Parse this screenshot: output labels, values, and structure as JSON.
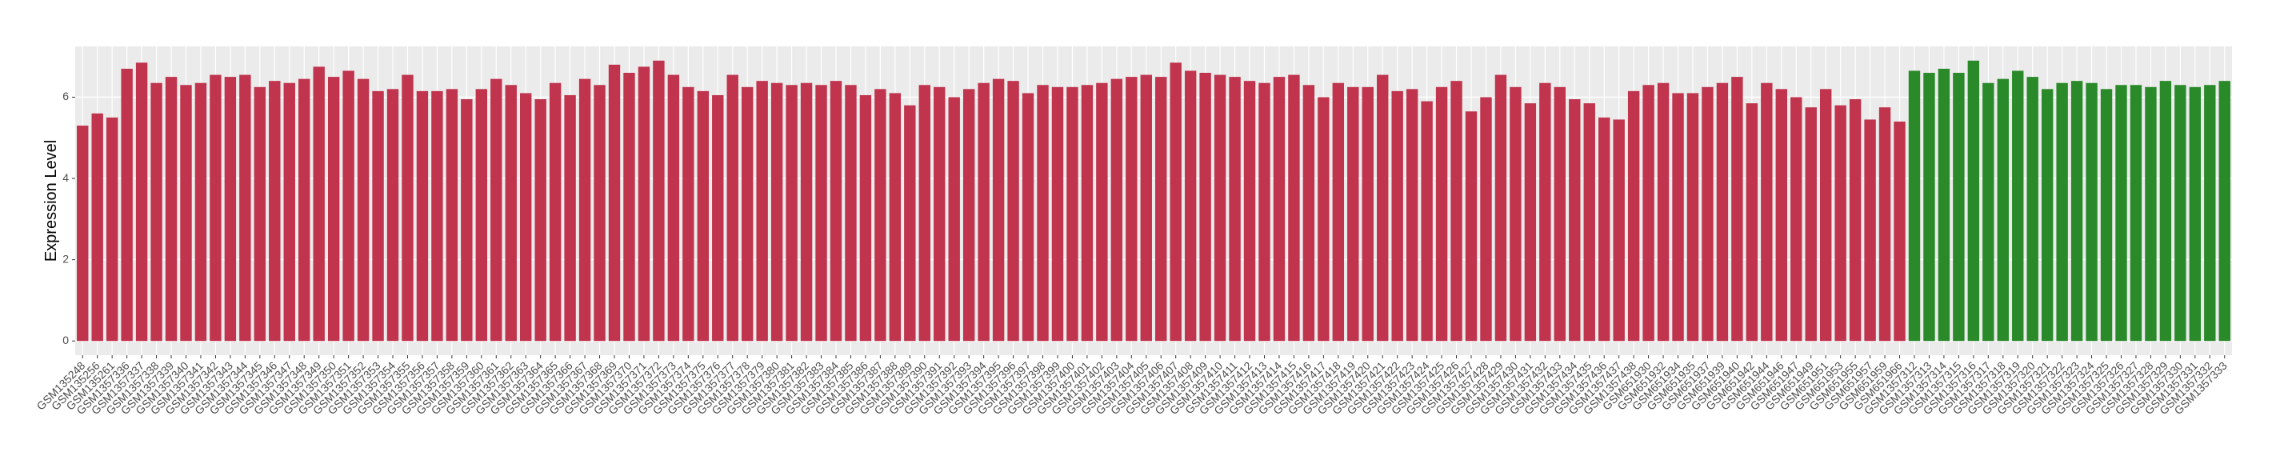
{
  "chart_data": {
    "type": "bar",
    "y_label": "Expression Level",
    "ylim": [
      -0.35,
      7.25
    ],
    "yticks": [
      0,
      2,
      4,
      6
    ],
    "grid": true,
    "groups": [
      {
        "color": "#c0344d",
        "categories": [
          "GSM135248",
          "GSM135256",
          "GSM135261",
          "GSM1357336",
          "GSM1357337",
          "GSM1357338",
          "GSM1357339",
          "GSM1357340",
          "GSM1357341",
          "GSM1357342",
          "GSM1357343",
          "GSM1357344",
          "GSM1357345",
          "GSM1357346",
          "GSM1357347",
          "GSM1357348",
          "GSM1357349",
          "GSM1357350",
          "GSM1357351",
          "GSM1357352",
          "GSM1357353",
          "GSM1357354",
          "GSM1357355",
          "GSM1357356",
          "GSM1357357",
          "GSM1357358",
          "GSM1357359",
          "GSM1357360",
          "GSM1357361",
          "GSM1357362",
          "GSM1357363",
          "GSM1357364",
          "GSM1357365",
          "GSM1357366",
          "GSM1357367",
          "GSM1357368",
          "GSM1357369",
          "GSM1357370",
          "GSM1357371",
          "GSM1357372",
          "GSM1357373",
          "GSM1357374",
          "GSM1357375",
          "GSM1357376",
          "GSM1357377",
          "GSM1357378",
          "GSM1357379",
          "GSM1357380",
          "GSM1357381",
          "GSM1357382",
          "GSM1357383",
          "GSM1357384",
          "GSM1357385",
          "GSM1357386",
          "GSM1357387",
          "GSM1357388",
          "GSM1357389",
          "GSM1357390",
          "GSM1357391",
          "GSM1357392",
          "GSM1357393",
          "GSM1357394",
          "GSM1357395",
          "GSM1357396",
          "GSM1357397",
          "GSM1357398",
          "GSM1357399",
          "GSM1357400",
          "GSM1357401",
          "GSM1357402",
          "GSM1357403",
          "GSM1357404",
          "GSM1357405",
          "GSM1357406",
          "GSM1357407",
          "GSM1357408",
          "GSM1357409",
          "GSM1357410",
          "GSM1357411",
          "GSM1357412",
          "GSM1357413",
          "GSM1357414",
          "GSM1357415",
          "GSM1357416",
          "GSM1357417",
          "GSM1357418",
          "GSM1357419",
          "GSM1357420",
          "GSM1357421",
          "GSM1357422",
          "GSM1357423",
          "GSM1357424",
          "GSM1357425",
          "GSM1357426",
          "GSM1357427",
          "GSM1357428",
          "GSM1357429",
          "GSM1357430",
          "GSM1357431",
          "GSM1357432",
          "GSM1357433",
          "GSM1357434",
          "GSM1357435",
          "GSM1357436",
          "GSM1357437",
          "GSM1357438",
          "GSM651930",
          "GSM651932",
          "GSM651934",
          "GSM651935",
          "GSM651937",
          "GSM651939",
          "GSM651940",
          "GSM651942",
          "GSM651944",
          "GSM651946",
          "GSM651947",
          "GSM651949",
          "GSM651951",
          "GSM651953",
          "GSM651955",
          "GSM651957",
          "GSM651959",
          "GSM651966"
        ],
        "values": [
          5.3,
          5.6,
          5.5,
          6.7,
          6.85,
          6.35,
          6.5,
          6.3,
          6.35,
          6.55,
          6.5,
          6.55,
          6.25,
          6.4,
          6.35,
          6.45,
          6.75,
          6.5,
          6.65,
          6.45,
          6.15,
          6.2,
          6.55,
          6.15,
          6.15,
          6.2,
          5.95,
          6.2,
          6.45,
          6.3,
          6.1,
          5.95,
          6.35,
          6.05,
          6.45,
          6.3,
          6.8,
          6.6,
          6.75,
          6.9,
          6.55,
          6.25,
          6.15,
          6.05,
          6.55,
          6.25,
          6.4,
          6.35,
          6.3,
          6.35,
          6.3,
          6.4,
          6.3,
          6.05,
          6.2,
          6.1,
          5.8,
          6.3,
          6.25,
          6.0,
          6.2,
          6.35,
          6.45,
          6.4,
          6.1,
          6.3,
          6.25,
          6.25,
          6.3,
          6.35,
          6.45,
          6.5,
          6.55,
          6.5,
          6.85,
          6.65,
          6.6,
          6.55,
          6.5,
          6.4,
          6.35,
          6.5,
          6.55,
          6.3,
          6.0,
          6.35,
          6.25,
          6.25,
          6.55,
          6.15,
          6.2,
          5.9,
          6.25,
          6.4,
          5.65,
          6.0,
          6.55,
          6.25,
          5.85,
          6.35,
          6.25,
          5.95,
          5.85,
          5.5,
          5.45,
          6.15,
          6.3,
          6.35,
          6.1,
          6.1,
          6.25,
          6.35,
          6.5,
          5.85,
          6.35,
          6.2,
          6.0,
          5.75,
          6.2,
          5.8,
          5.95,
          5.45,
          5.75,
          5.4
        ]
      },
      {
        "color": "#2a8a2a",
        "categories": [
          "GSM1357312",
          "GSM1357313",
          "GSM1357314",
          "GSM1357315",
          "GSM1357316",
          "GSM1357317",
          "GSM1357318",
          "GSM1357319",
          "GSM1357320",
          "GSM1357321",
          "GSM1357322",
          "GSM1357323",
          "GSM1357324",
          "GSM1357325",
          "GSM1357326",
          "GSM1357327",
          "GSM1357328",
          "GSM1357329",
          "GSM1357330",
          "GSM1357331",
          "GSM1357332",
          "GSM1357333"
        ],
        "values": [
          6.65,
          6.6,
          6.7,
          6.6,
          6.9,
          6.35,
          6.45,
          6.65,
          6.5,
          6.2,
          6.35,
          6.4,
          6.35,
          6.2,
          6.3,
          6.3,
          6.25,
          6.4,
          6.3,
          6.25,
          6.3,
          6.4
        ]
      }
    ]
  }
}
